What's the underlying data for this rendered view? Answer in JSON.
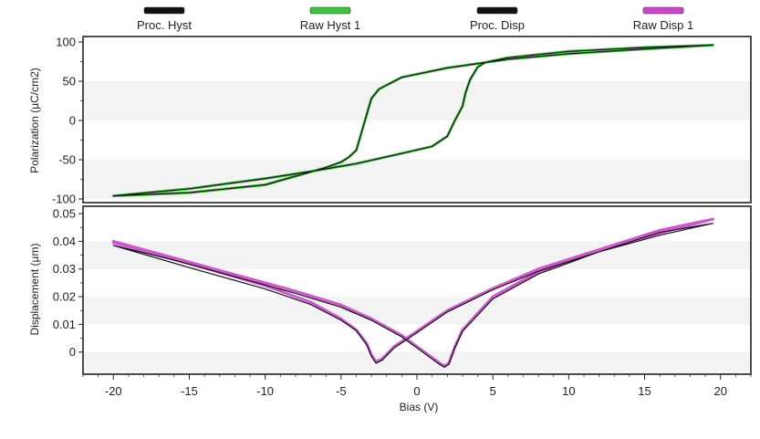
{
  "legend": [
    {
      "label": "Proc. Hyst",
      "color": "#111111"
    },
    {
      "label": "Raw Hyst 1",
      "color": "#3cc33c"
    },
    {
      "label": "Proc. Disp",
      "color": "#111111"
    },
    {
      "label": "Raw Disp 1",
      "color": "#cc44cc"
    }
  ],
  "chart_data": [
    {
      "type": "line",
      "title": "",
      "xlabel": "",
      "ylabel": "Polarization (µC/cm2)",
      "xlim": [
        -22,
        22
      ],
      "ylim": [
        -100,
        100
      ],
      "xticks": [],
      "yticks": [
        -100,
        -50,
        0,
        50,
        100
      ],
      "grid": "horizontal bands",
      "series": [
        {
          "name": "Raw Hyst 1",
          "color": "#3cc33c",
          "x": [
            -20,
            -15,
            -10,
            -6,
            -5,
            -4.5,
            -4,
            -3.8,
            -3.5,
            -3.2,
            -3,
            -2.5,
            -1,
            2,
            6,
            10,
            15,
            19.5,
            15,
            10,
            6,
            4.5,
            4,
            3.5,
            3.2,
            3,
            2.5,
            2,
            1,
            -1,
            -4,
            -7,
            -10,
            -15,
            -20
          ],
          "y": [
            -96,
            -92,
            -82,
            -60,
            -53,
            -47,
            -38,
            -25,
            -5,
            15,
            28,
            40,
            55,
            67,
            78,
            85,
            91,
            96,
            93,
            88,
            80,
            74,
            68,
            52,
            35,
            18,
            0,
            -20,
            -33,
            -42,
            -55,
            -65,
            -74,
            -87,
            -96
          ]
        },
        {
          "name": "Proc. Hyst",
          "color": "#111111",
          "x": [
            -20,
            -15,
            -10,
            -6,
            -5,
            -4.5,
            -4,
            -3.8,
            -3.5,
            -3.2,
            -3,
            -2.5,
            -1,
            2,
            6,
            10,
            15,
            19.5,
            15,
            10,
            6,
            4.5,
            4,
            3.5,
            3.2,
            3,
            2.5,
            2,
            1,
            -1,
            -4,
            -7,
            -10,
            -15,
            -20
          ],
          "y": [
            -96,
            -92,
            -82,
            -60,
            -53,
            -47,
            -38,
            -25,
            -5,
            15,
            28,
            40,
            55,
            67,
            78,
            85,
            91,
            96,
            93,
            88,
            80,
            74,
            68,
            52,
            35,
            18,
            0,
            -20,
            -33,
            -42,
            -55,
            -65,
            -74,
            -87,
            -96
          ]
        }
      ]
    },
    {
      "type": "line",
      "title": "",
      "xlabel": "Bias (V)",
      "ylabel": "Displacement (µm)",
      "xlim": [
        -22,
        22
      ],
      "ylim": [
        -0.008,
        0.052
      ],
      "xticks": [
        -20,
        -15,
        -10,
        -5,
        0,
        5,
        10,
        15,
        20
      ],
      "yticks": [
        0,
        0.01,
        0.02,
        0.03,
        0.04,
        0.05
      ],
      "ytick_labels": [
        "0",
        "0.01",
        "0.02",
        "0.03",
        "0.04",
        "0.05"
      ],
      "grid": "horizontal bands",
      "series": [
        {
          "name": "Raw Disp 1",
          "color": "#cc44cc",
          "x": [
            -20,
            -15,
            -10,
            -7,
            -5,
            -4,
            -3.3,
            -3,
            -2.7,
            -2.3,
            -1.5,
            0,
            2,
            5,
            8,
            12,
            16,
            19.5,
            16,
            12,
            8,
            5,
            3,
            2.5,
            2.1,
            1.8,
            1.5,
            1,
            0,
            -1,
            -3,
            -5,
            -8,
            -12,
            -16,
            -20
          ],
          "y": [
            0.0395,
            0.032,
            0.024,
            0.018,
            0.012,
            0.008,
            0.003,
            -0.001,
            -0.0035,
            -0.0025,
            0.002,
            0.0075,
            0.015,
            0.023,
            0.03,
            0.037,
            0.043,
            0.048,
            0.044,
            0.037,
            0.029,
            0.02,
            0.008,
            0.002,
            -0.004,
            -0.005,
            -0.004,
            -0.002,
            0.002,
            0.006,
            0.012,
            0.017,
            0.022,
            0.028,
            0.034,
            0.04
          ]
        },
        {
          "name": "Proc. Disp",
          "color": "#111111",
          "x": [
            -20,
            -15,
            -10,
            -7,
            -5,
            -4,
            -3.3,
            -3,
            -2.7,
            -2.3,
            -1.5,
            0,
            2,
            5,
            8,
            12,
            16,
            19.5,
            16,
            12,
            8,
            5,
            3,
            2.5,
            2.1,
            1.8,
            1.5,
            1,
            0,
            -1,
            -3,
            -5,
            -8,
            -12,
            -16,
            -20
          ],
          "y": [
            0.0385,
            0.0305,
            0.0228,
            0.0172,
            0.0115,
            0.0078,
            0.0025,
            -0.0015,
            -0.004,
            -0.003,
            0.0015,
            0.007,
            0.0145,
            0.0225,
            0.0292,
            0.0362,
            0.0422,
            0.0465,
            0.0432,
            0.0362,
            0.0282,
            0.0192,
            0.0075,
            0.0015,
            -0.0045,
            -0.0055,
            -0.0045,
            -0.0025,
            0.0015,
            0.0055,
            0.0115,
            0.0162,
            0.0212,
            0.0272,
            0.0332,
            0.0385
          ]
        }
      ]
    }
  ]
}
